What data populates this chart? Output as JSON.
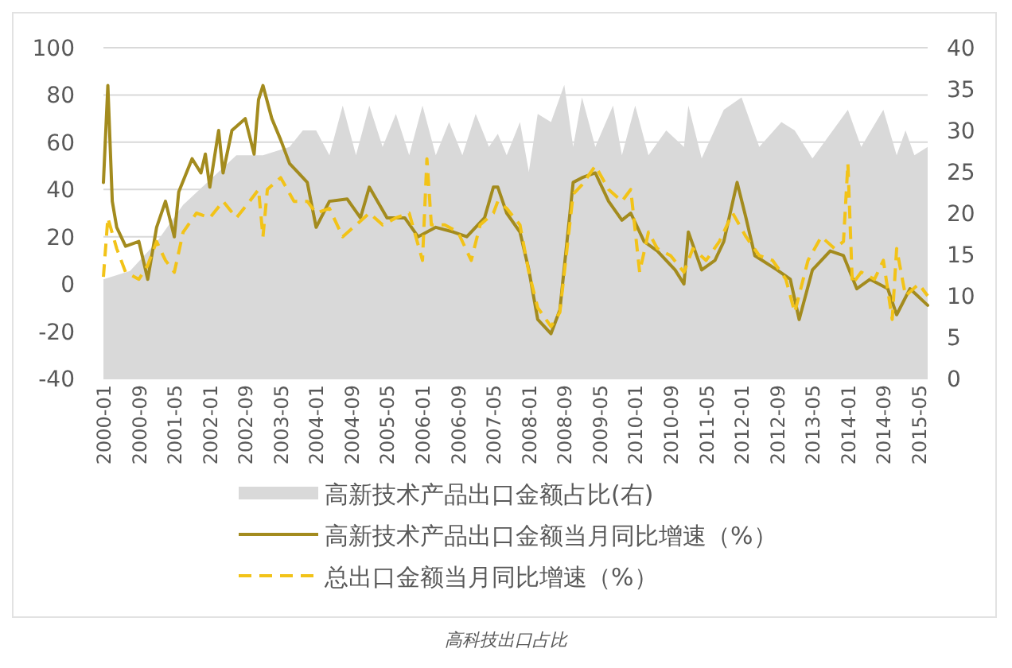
{
  "chart_data": {
    "type": "line",
    "xlim": [
      "2000-01",
      "2015-07"
    ],
    "xticks": [
      "2000-01",
      "2000-09",
      "2001-05",
      "2002-01",
      "2002-09",
      "2003-05",
      "2004-01",
      "2004-09",
      "2005-05",
      "2006-01",
      "2006-09",
      "2007-05",
      "2008-01",
      "2008-09",
      "2009-05",
      "2010-01",
      "2010-09",
      "2011-05",
      "2012-01",
      "2012-09",
      "2013-05",
      "2014-01",
      "2014-09",
      "2015-05"
    ],
    "ylim": [
      -40,
      100
    ],
    "yticks": [
      -40,
      -20,
      0,
      20,
      40,
      60,
      80,
      100
    ],
    "y2lim": [
      0,
      40
    ],
    "y2ticks": [
      0,
      5,
      10,
      15,
      20,
      25,
      30,
      35,
      40
    ],
    "grid": "y",
    "legend": "bottom",
    "annotations": [
      "高科技出口占比"
    ],
    "series": [
      {
        "name": "高新技术产品出口金额占比(右)",
        "type": "area",
        "axis": "y2",
        "color": "#d9d9d9",
        "x": [
          "2000-01",
          "2000-07",
          "2001-01",
          "2001-07",
          "2002-01",
          "2002-07",
          "2003-01",
          "2003-07",
          "2003-10",
          "2004-01",
          "2004-04",
          "2004-07",
          "2004-10",
          "2005-01",
          "2005-04",
          "2005-07",
          "2005-10",
          "2006-01",
          "2006-04",
          "2006-07",
          "2006-10",
          "2007-01",
          "2007-04",
          "2007-06",
          "2007-08",
          "2007-11",
          "2008-01",
          "2008-03",
          "2008-06",
          "2008-09",
          "2008-11",
          "2009-01",
          "2009-04",
          "2009-08",
          "2009-10",
          "2010-01",
          "2010-04",
          "2010-08",
          "2010-12",
          "2011-01",
          "2011-04",
          "2011-09",
          "2012-01",
          "2012-05",
          "2012-10",
          "2013-01",
          "2013-05",
          "2014-01",
          "2014-04",
          "2014-09",
          "2014-12",
          "2015-02",
          "2015-04",
          "2015-07"
        ],
        "values": [
          12,
          13,
          16.5,
          21,
          24,
          27,
          27,
          28,
          30,
          30,
          27,
          33,
          27,
          33,
          28,
          32,
          27,
          33,
          27,
          31,
          27,
          32,
          28,
          29.6,
          27,
          31,
          25,
          32,
          31,
          35.5,
          28,
          34,
          28,
          33,
          27,
          33,
          27,
          30,
          28,
          33,
          26.6,
          32.5,
          34,
          28,
          31,
          30,
          26.6,
          32.5,
          28,
          32.5,
          27,
          30,
          27,
          28
        ]
      },
      {
        "name": "高新技术产品出口金额当月同比增速（%）",
        "type": "line",
        "color": "#a38b1e",
        "line_style": "solid",
        "x": [
          "2000-01",
          "2000-02",
          "2000-03",
          "2000-04",
          "2000-06",
          "2000-09",
          "2000-11",
          "2001-01",
          "2001-03",
          "2001-05",
          "2001-06",
          "2001-09",
          "2001-11",
          "2001-12",
          "2002-01",
          "2002-03",
          "2002-04",
          "2002-06",
          "2002-09",
          "2002-11",
          "2002-12",
          "2003-01",
          "2003-03",
          "2003-05",
          "2003-07",
          "2003-09",
          "2003-11",
          "2004-01",
          "2004-04",
          "2004-08",
          "2004-11",
          "2005-01",
          "2005-05",
          "2005-09",
          "2005-12",
          "2006-04",
          "2006-08",
          "2006-11",
          "2007-03",
          "2007-05",
          "2007-06",
          "2007-08",
          "2007-11",
          "2008-01",
          "2008-03",
          "2008-06",
          "2008-08",
          "2008-11",
          "2009-01",
          "2009-04",
          "2009-07",
          "2009-10",
          "2009-12",
          "2010-03",
          "2010-06",
          "2010-10",
          "2010-12",
          "2011-01",
          "2011-04",
          "2011-07",
          "2011-09",
          "2011-12",
          "2012-02",
          "2012-04",
          "2012-09",
          "2012-12",
          "2013-02",
          "2013-05",
          "2013-09",
          "2013-12",
          "2014-03",
          "2014-06",
          "2014-10",
          "2014-12",
          "2015-03",
          "2015-07"
        ],
        "values": [
          43,
          84,
          35,
          24,
          16,
          18,
          2,
          24,
          35,
          20,
          39,
          53,
          47,
          55,
          41,
          65,
          47,
          65,
          70,
          55,
          78,
          84,
          70,
          61,
          51,
          47,
          43,
          24,
          35,
          36,
          28,
          41,
          28,
          28,
          20,
          24,
          22,
          20,
          28,
          41,
          41,
          30,
          22,
          6,
          -15,
          -21,
          -11,
          43,
          45,
          47,
          35,
          27,
          30,
          18,
          14,
          6,
          0,
          22,
          6,
          10,
          18,
          43,
          28,
          12,
          6,
          2,
          -15,
          6,
          14,
          12,
          -2,
          2,
          -2,
          -13,
          -2,
          -9
        ]
      },
      {
        "name": "总出口金额当月同比增速（%）",
        "type": "line",
        "color": "#f2c318",
        "line_style": "dashed",
        "x": [
          "2000-01",
          "2000-02",
          "2000-04",
          "2000-06",
          "2000-09",
          "2000-11",
          "2001-01",
          "2001-03",
          "2001-05",
          "2001-07",
          "2001-10",
          "2002-01",
          "2002-04",
          "2002-07",
          "2002-10",
          "2002-12",
          "2003-01",
          "2003-02",
          "2003-05",
          "2003-08",
          "2003-11",
          "2004-01",
          "2004-04",
          "2004-07",
          "2004-10",
          "2005-01",
          "2005-04",
          "2005-07",
          "2005-10",
          "2006-01",
          "2006-02",
          "2006-03",
          "2006-06",
          "2006-09",
          "2006-12",
          "2007-02",
          "2007-05",
          "2007-06",
          "2007-08",
          "2007-11",
          "2008-01",
          "2008-03",
          "2008-06",
          "2008-08",
          "2008-11",
          "2009-01",
          "2009-04",
          "2009-07",
          "2009-10",
          "2009-12",
          "2010-02",
          "2010-04",
          "2010-06",
          "2010-09",
          "2010-12",
          "2011-02",
          "2011-05",
          "2011-08",
          "2011-11",
          "2012-02",
          "2012-05",
          "2012-08",
          "2012-11",
          "2013-01",
          "2013-04",
          "2013-07",
          "2013-10",
          "2013-12",
          "2014-01",
          "2014-02",
          "2014-04",
          "2014-07",
          "2014-09",
          "2014-11",
          "2014-12",
          "2015-02",
          "2015-05",
          "2015-07"
        ],
        "values": [
          3,
          28,
          15,
          5,
          2,
          8,
          18,
          10,
          5,
          22,
          30,
          28,
          35,
          28,
          35,
          40,
          20,
          40,
          45,
          35,
          35,
          30,
          32,
          20,
          25,
          30,
          25,
          28,
          30,
          10,
          53,
          25,
          25,
          22,
          10,
          25,
          30,
          35,
          32,
          25,
          5,
          -10,
          -18,
          -12,
          38,
          42,
          50,
          40,
          35,
          40,
          5,
          22,
          15,
          12,
          5,
          15,
          10,
          18,
          30,
          20,
          12,
          10,
          2,
          -12,
          10,
          20,
          15,
          18,
          51,
          0,
          5,
          2,
          10,
          -15,
          15,
          -5,
          0,
          -5
        ]
      }
    ]
  }
}
